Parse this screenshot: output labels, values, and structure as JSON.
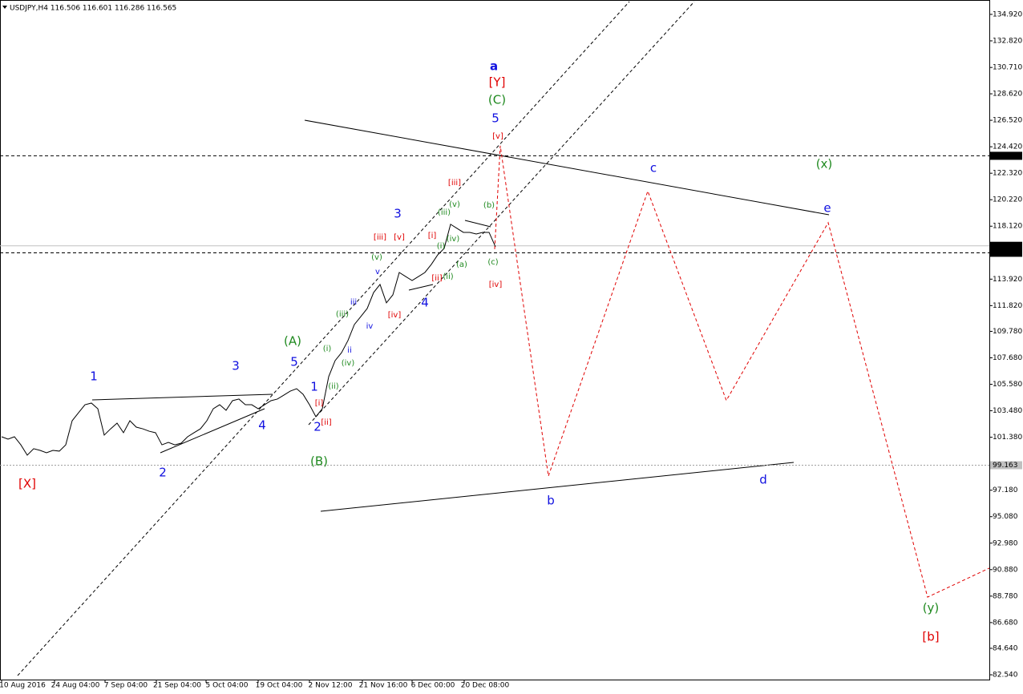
{
  "chart_data": {
    "type": "line",
    "title": "USDJPY,H4  116.506 116.601 116.286 116.565",
    "ylim": [
      82.16,
      136.06
    ],
    "yticks": [
      {
        "value": 134.92,
        "label": "134.920"
      },
      {
        "value": 132.82,
        "label": "132.820"
      },
      {
        "value": 130.71,
        "label": "130.710"
      },
      {
        "value": 128.62,
        "label": "128.620"
      },
      {
        "value": 126.52,
        "label": "126.520"
      },
      {
        "value": 124.42,
        "label": "124.420"
      },
      {
        "value": 122.32,
        "label": "122.320"
      },
      {
        "value": 120.22,
        "label": "120.220"
      },
      {
        "value": 118.12,
        "label": "118.120"
      },
      {
        "value": 113.92,
        "label": "113.920"
      },
      {
        "value": 111.82,
        "label": "111.820"
      },
      {
        "value": 109.78,
        "label": "109.780"
      },
      {
        "value": 107.68,
        "label": "107.680"
      },
      {
        "value": 105.58,
        "label": "105.580"
      },
      {
        "value": 103.48,
        "label": "103.480"
      },
      {
        "value": 101.38,
        "label": "101.380"
      },
      {
        "value": 97.18,
        "label": "97.180"
      },
      {
        "value": 95.08,
        "label": "95.080"
      },
      {
        "value": 92.98,
        "label": "92.980"
      },
      {
        "value": 90.88,
        "label": "90.880"
      },
      {
        "value": 88.78,
        "label": "88.780"
      },
      {
        "value": 86.68,
        "label": "86.680"
      },
      {
        "value": 84.64,
        "label": "84.640"
      },
      {
        "value": 82.54,
        "label": "82.540"
      }
    ],
    "hlines": [
      {
        "value": 123.702,
        "style": "dashed",
        "color": "#000000"
      },
      {
        "value": 116.565,
        "style": "solid",
        "color": "#c0c0c0"
      },
      {
        "value": {
          "value": 116.01,
          "label": "116.010"
        },
        "style": "dashed",
        "color": "#000000"
      },
      {
        "value": 99.163,
        "style": "dotted",
        "color": "#a0a0a0"
      }
    ],
    "xtick_labels": [
      "10 Aug 2016",
      "24 Aug 04:00",
      "7 Sep 04:00",
      "21 Sep 04:00",
      "5 Oct 04:00",
      "19 Oct 04:00",
      "2 Nov 12:00",
      "21 Nov 16:00",
      "6 Dec 00:00",
      "20 Dec 08:00"
    ],
    "series": [
      {
        "color": "#000000",
        "style": "solid",
        "values": [
          101.42,
          101.23,
          101.42,
          100.78,
          99.96,
          100.47,
          100.34,
          100.15,
          100.34,
          100.28,
          100.78,
          102.69,
          103.33,
          103.96,
          104.09,
          103.64,
          101.55,
          102.05,
          102.5,
          101.74,
          102.69,
          102.18,
          102.05,
          101.86,
          101.74,
          100.78,
          100.97,
          100.78,
          100.91,
          101.42,
          101.74,
          102.05,
          102.69,
          103.64,
          103.96,
          103.52,
          104.28,
          104.41,
          103.96,
          103.96,
          103.64,
          103.96,
          104.28,
          104.41,
          104.72,
          105.04,
          105.23,
          104.79,
          103.96,
          103.01,
          103.64,
          106.19,
          107.46,
          108.09,
          109.05,
          110.32,
          110.95,
          111.59,
          112.86,
          113.5,
          112.04,
          112.67,
          114.45,
          114.13,
          113.81,
          114.13,
          114.45,
          115.09,
          115.85,
          116.36,
          118.27,
          117.95,
          117.63,
          117.63,
          117.5,
          117.63,
          117.63,
          116.49
        ]
      },
      {
        "color": "#e00000",
        "style": "dashed",
        "values": [
          116.3,
          124.5,
          98.3,
          120.9,
          104.3,
          118.4,
          88.7,
          91.0
        ]
      }
    ],
    "annotations": [
      {
        "text": "a",
        "color": "#1010e0"
      },
      {
        "text": "[Y]",
        "color": "#e00000"
      },
      {
        "text": "(C)",
        "color": "#208a20"
      },
      {
        "text": "5",
        "color": "#1010e0"
      },
      {
        "text": "[v]",
        "color": "#e00000"
      },
      {
        "text": "c",
        "color": "#1010e0"
      },
      {
        "text": "(x)",
        "color": "#208a20"
      },
      {
        "text": "e",
        "color": "#1010e0"
      },
      {
        "text": "[iii]",
        "color": "#e00000"
      },
      {
        "text": "3",
        "color": "#1010e0"
      },
      {
        "text": "(b)",
        "color": "#208a20"
      },
      {
        "text": "(v)",
        "color": "#208a20"
      },
      {
        "text": "(iii)",
        "color": "#208a20"
      },
      {
        "text": "[iii]",
        "color": "#e00000"
      },
      {
        "text": "[v]",
        "color": "#e00000"
      },
      {
        "text": "[i]",
        "color": "#e00000"
      },
      {
        "text": "(i)",
        "color": "#208a20"
      },
      {
        "text": "(iv)",
        "color": "#208a20"
      },
      {
        "text": "(v)",
        "color": "#208a20"
      },
      {
        "text": "(a)",
        "color": "#208a20"
      },
      {
        "text": "(c)",
        "color": "#208a20"
      },
      {
        "text": "[ii]",
        "color": "#e00000"
      },
      {
        "text": "(ii)",
        "color": "#208a20"
      },
      {
        "text": "[iv]",
        "color": "#e00000"
      },
      {
        "text": "v",
        "color": "#1010e0"
      },
      {
        "text": "4",
        "color": "#1010e0"
      },
      {
        "text": "iii",
        "color": "#1010e0"
      },
      {
        "text": "[iv]",
        "color": "#e00000"
      },
      {
        "text": "(iii)",
        "color": "#208a20"
      },
      {
        "text": "iv",
        "color": "#1010e0"
      },
      {
        "text": "(A)",
        "color": "#208a20"
      },
      {
        "text": "(i)",
        "color": "#208a20"
      },
      {
        "text": "ii",
        "color": "#1010e0"
      },
      {
        "text": "1",
        "color": "#1010e0"
      },
      {
        "text": "3",
        "color": "#1010e0"
      },
      {
        "text": "5",
        "color": "#1010e0"
      },
      {
        "text": "(iv)",
        "color": "#208a20"
      },
      {
        "text": "1",
        "color": "#1010e0"
      },
      {
        "text": "(ii)",
        "color": "#208a20"
      },
      {
        "text": "[i]",
        "color": "#e00000"
      },
      {
        "text": "4",
        "color": "#1010e0"
      },
      {
        "text": "2",
        "color": "#1010e0"
      },
      {
        "text": "[ii]",
        "color": "#e00000"
      },
      {
        "text": "(B)",
        "color": "#208a20"
      },
      {
        "text": "2",
        "color": "#1010e0"
      },
      {
        "text": "[X]",
        "color": "#e00000"
      },
      {
        "text": "b",
        "color": "#1010e0"
      },
      {
        "text": "d",
        "color": "#1010e0"
      },
      {
        "text": "(y)",
        "color": "#208a20"
      },
      {
        "text": "[b]",
        "color": "#e00000"
      }
    ]
  }
}
